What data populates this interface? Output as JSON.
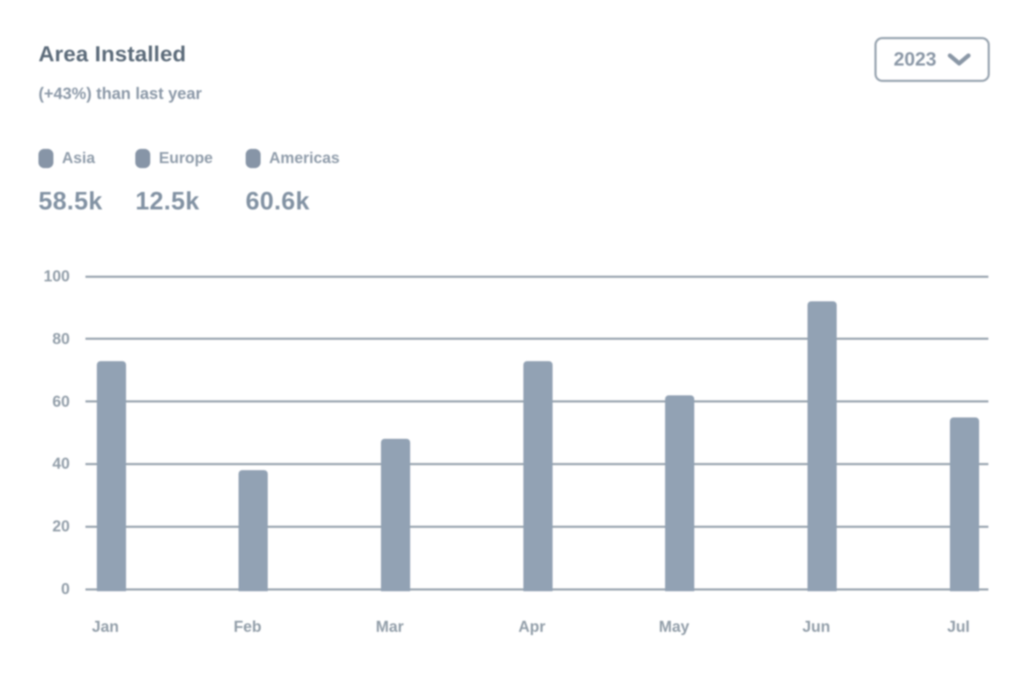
{
  "header": {
    "title": "Area Installed",
    "subtitle": "(+43%) than last year"
  },
  "year_selector": {
    "label": "2023",
    "icon": "chevron-down-icon"
  },
  "legend": [
    {
      "name": "Asia",
      "value": "58.5k"
    },
    {
      "name": "Europe",
      "value": "12.5k"
    },
    {
      "name": "Americas",
      "value": "60.6k"
    }
  ],
  "chart_data": {
    "type": "bar",
    "title": "Area Installed",
    "categories": [
      "Jan",
      "Feb",
      "Mar",
      "Apr",
      "May",
      "Jun",
      "Jul"
    ],
    "values": [
      73,
      38,
      48,
      73,
      62,
      92,
      55
    ],
    "xlabel": "",
    "ylabel": "",
    "ylim": [
      0,
      100
    ],
    "yticks": [
      0,
      20,
      40,
      60,
      80,
      100
    ],
    "grid": "horizontal-only",
    "legend_position": "top-left-header"
  },
  "colors": {
    "bar": "#92a2b4",
    "gridline": "#9aa5b0",
    "axis_label": "#929ea9",
    "title": "#5c6b7a",
    "subtitle": "#8c99a8",
    "legend_label": "#909dab",
    "legend_value": "#8292a3",
    "legend_dot": "#8795a7",
    "button_border": "#98a4b0",
    "button_text": "#8a97a6",
    "background": "#ffffff"
  }
}
